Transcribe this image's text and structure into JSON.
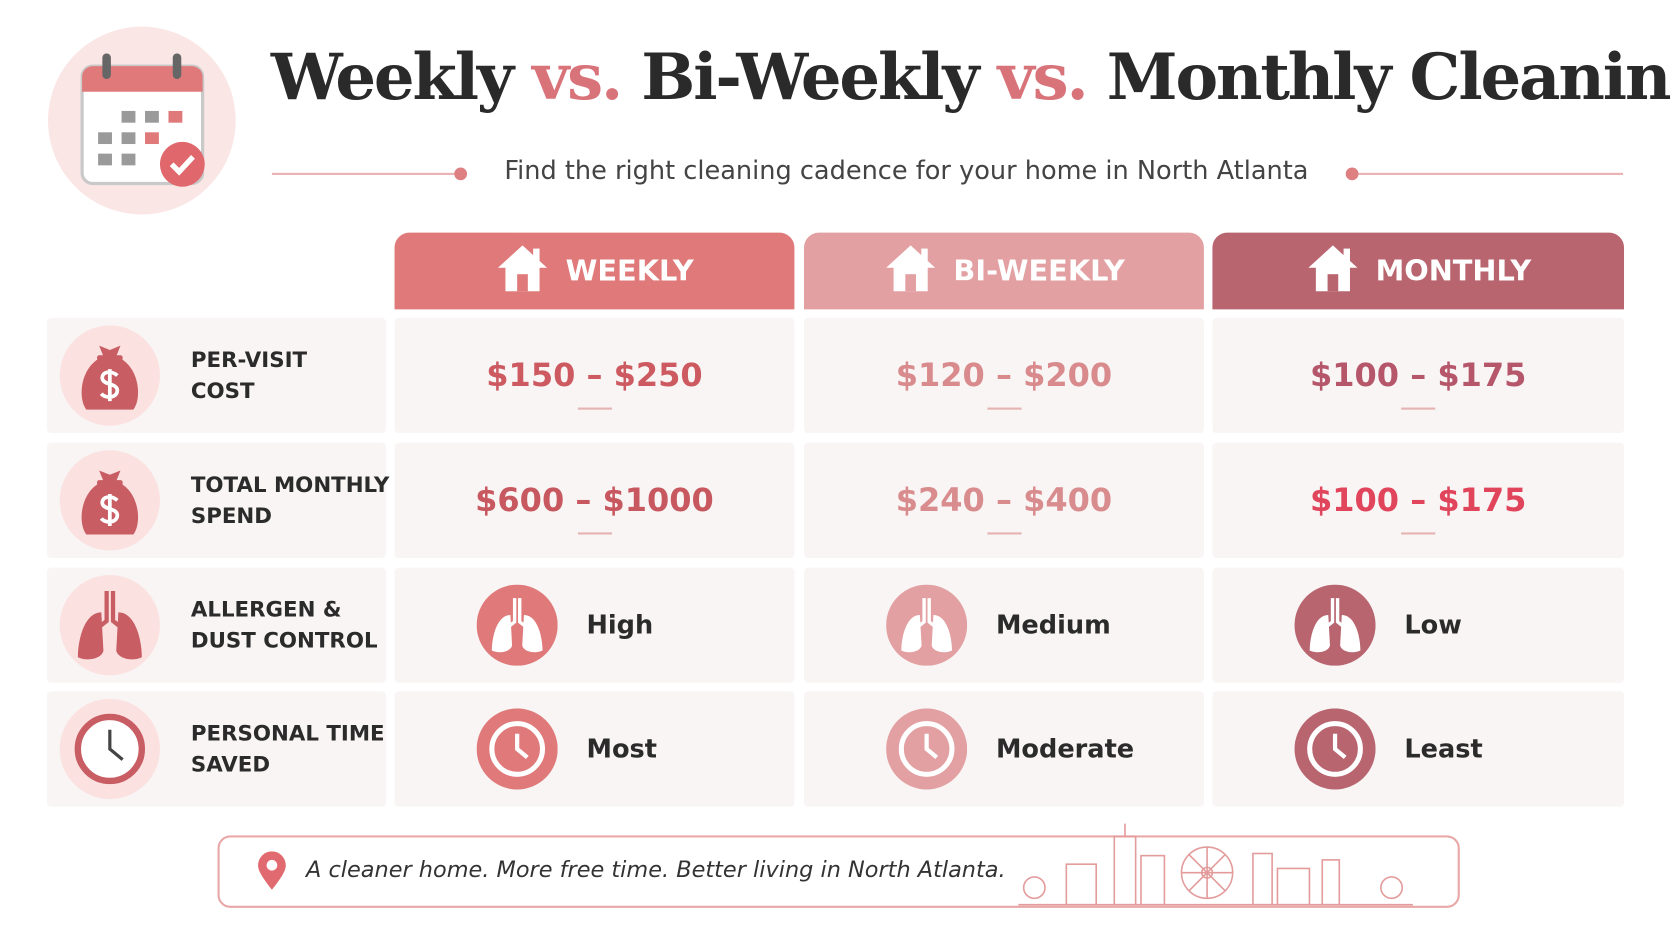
{
  "header": {
    "title": [
      "Weekly",
      "vs.",
      "Bi-Weekly",
      "vs.",
      "Monthly Cleaning"
    ],
    "subtitle": "Find the right cleaning cadence for your home in North Atlanta"
  },
  "table": {
    "columns": [
      "WEEKLY",
      "BI-WEEKLY",
      "MONTHLY"
    ],
    "rows": [
      {
        "label": [
          "PER-VISIT",
          "COST"
        ],
        "cells": [
          "$150 – $250",
          "$120 – $200",
          "$100 – $175"
        ]
      },
      {
        "label": [
          "TOTAL MONTHLY",
          "SPEND"
        ],
        "cells": [
          "$600 – $1000",
          "$240 – $400",
          "$100 – $175"
        ]
      },
      {
        "label": [
          "ALLERGEN &",
          "DUST CONTROL"
        ],
        "cells": [
          "High",
          "Medium",
          "Low"
        ]
      },
      {
        "label": [
          "PERSONAL TIME",
          "SAVED"
        ],
        "cells": [
          "Most",
          "Moderate",
          "Least"
        ]
      }
    ]
  },
  "footer": {
    "tagline": "A cleaner home. More free time. Better living in North Atlanta."
  }
}
